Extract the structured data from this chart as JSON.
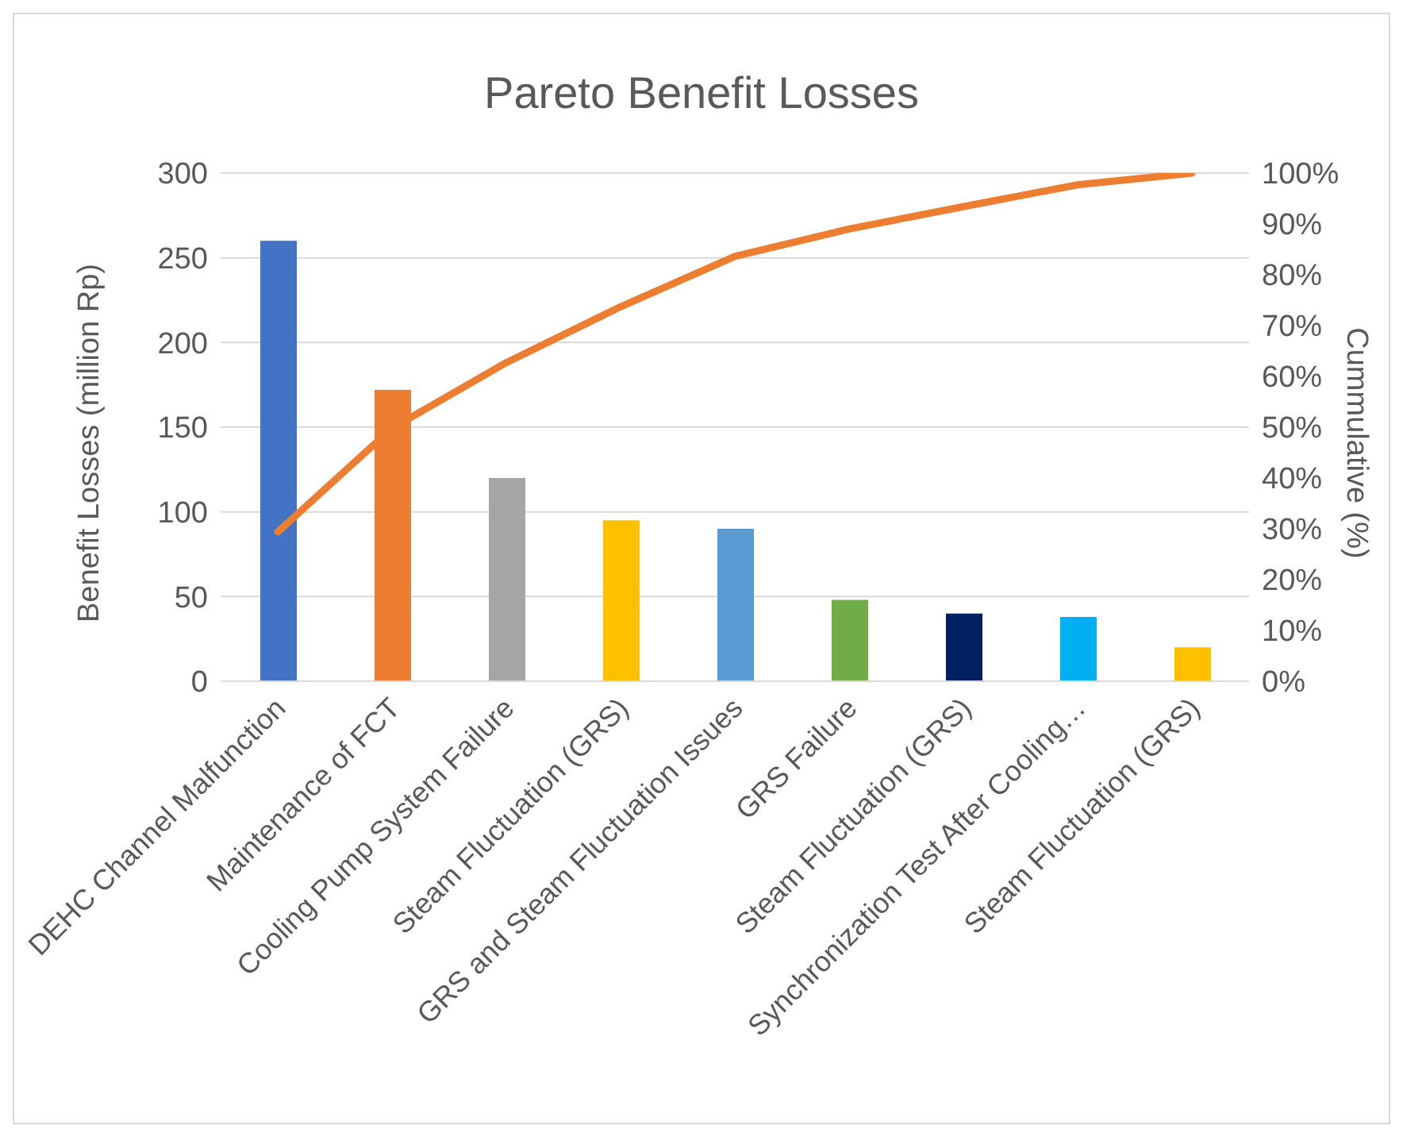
{
  "chart_data": {
    "type": "bar",
    "title": "Pareto Benefit Losses",
    "ylabel": "Benefit  Losses (million Rp)",
    "y2label": "Cummulative (%)",
    "categories": [
      "DEHC Channel Malfunction",
      "Maintenance of FCT",
      "Cooling Pump System Failure",
      "Steam Fluctuation (GRS)",
      "GRS and Steam Fluctuation Issues",
      "GRS Failure",
      "Steam Fluctuation (GRS)",
      "Synchronization Test After Cooling…",
      "Steam Fluctuation (GRS)"
    ],
    "series": [
      {
        "values": [
          260,
          172,
          120,
          95,
          90,
          48,
          40,
          38,
          20
        ],
        "colors": [
          "#4472c4",
          "#ed7d31",
          "#a5a5a5",
          "#ffc000",
          "#5b9bd5",
          "#70ad47",
          "#002060",
          "#00b0f0",
          "#ffc000"
        ]
      },
      {
        "type": "line",
        "axis": "y2",
        "color": "#ed7d31",
        "values": [
          29.4,
          49.8,
          62.7,
          73.7,
          83.6,
          89,
          93.4,
          97.7,
          100
        ]
      }
    ],
    "ylim": [
      0,
      300
    ],
    "yticks": [
      0,
      50,
      100,
      150,
      200,
      250,
      300
    ],
    "y2lim": [
      0,
      100
    ],
    "y2ticks": [
      {
        "value": 0,
        "label": "0%"
      },
      {
        "value": 10,
        "label": "10%"
      },
      {
        "value": 20,
        "label": "20%"
      },
      {
        "value": 30,
        "label": "30%"
      },
      {
        "value": 40,
        "label": "40%"
      },
      {
        "value": 50,
        "label": "50%"
      },
      {
        "value": 60,
        "label": "60%"
      },
      {
        "value": 70,
        "label": "70%"
      },
      {
        "value": 80,
        "label": "80%"
      },
      {
        "value": 90,
        "label": "90%"
      },
      {
        "value": 100,
        "label": "100%"
      }
    ],
    "grid": "y",
    "legend": false,
    "marker": "none",
    "line_style": "solid"
  }
}
